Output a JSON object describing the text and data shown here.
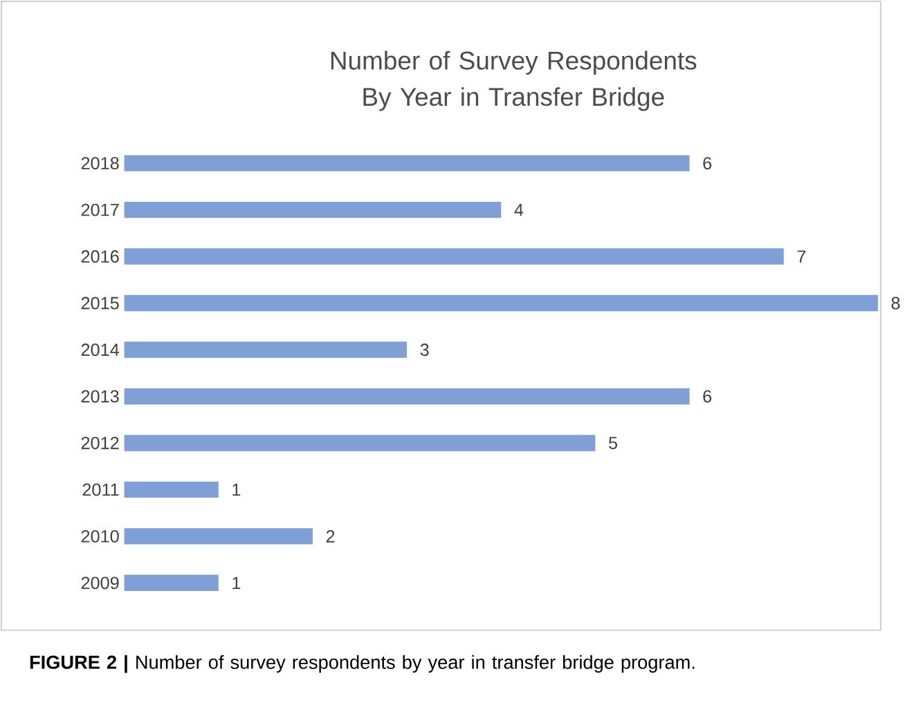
{
  "chart_data": {
    "type": "bar",
    "orientation": "horizontal",
    "title": "Number of Survey Respondents By Year in Transfer Bridge",
    "categories": [
      "2018",
      "2017",
      "2016",
      "2015",
      "2014",
      "2013",
      "2012",
      "2011",
      "2010",
      "2009"
    ],
    "values": [
      6,
      4,
      7,
      8,
      3,
      6,
      5,
      1,
      2,
      1
    ],
    "color": "#7f9fd6",
    "data_labels": true,
    "annotations": [
      "**FIGURE 2 |** Number of survey respondents by year in transfer bridge program."
    ]
  }
}
